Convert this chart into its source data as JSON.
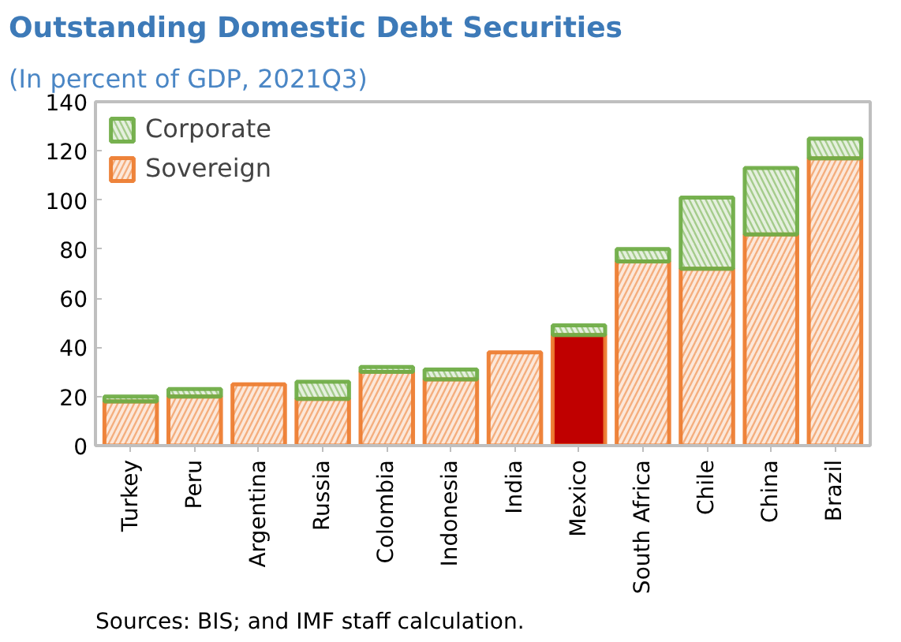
{
  "chart_data": {
    "type": "bar",
    "title": "Outstanding Domestic Debt Securities",
    "subtitle": "(In percent of GDP, 2021Q3)",
    "categories": [
      "Turkey",
      "Peru",
      "Argentina",
      "Russia",
      "Colombia",
      "Indonesia",
      "India",
      "Mexico",
      "South Africa",
      "Chile",
      "China",
      "Brazil"
    ],
    "stacked": true,
    "series": [
      {
        "name": "Sovereign",
        "color": "#ed7d31",
        "colors": [
          "#ed7d31",
          "#ed7d31",
          "#ed7d31",
          "#ed7d31",
          "#ed7d31",
          "#ed7d31",
          "#ed7d31",
          "#c00000",
          "#ed7d31",
          "#ed7d31",
          "#ed7d31",
          "#ed7d31"
        ],
        "values": [
          18,
          20,
          25,
          19,
          30,
          27,
          38,
          45,
          75,
          72,
          86,
          117
        ]
      },
      {
        "name": "Corporate",
        "color": "#70ad47",
        "values": [
          2,
          3,
          0,
          7,
          2,
          4,
          0,
          4,
          5,
          29,
          27,
          8
        ]
      }
    ],
    "ylim": [
      0,
      140
    ],
    "yticks": [
      0,
      20,
      40,
      60,
      80,
      100,
      120,
      140
    ],
    "legend": "top left",
    "annotations": [
      "Sources: BIS; and IMF staff calculation."
    ]
  }
}
